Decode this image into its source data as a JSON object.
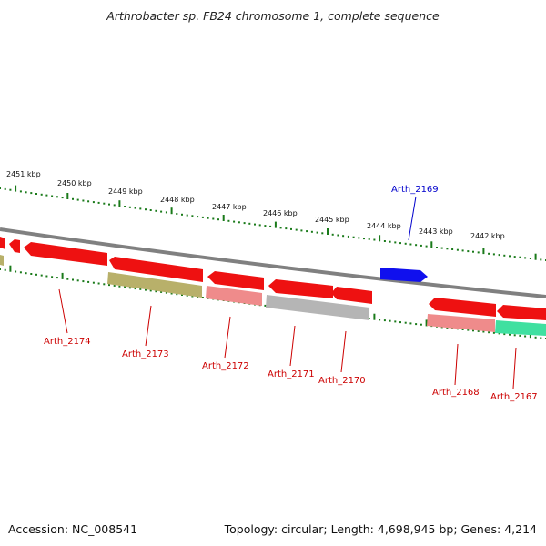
{
  "title": "Arthrobacter sp. FB24 chromosome 1, complete sequence",
  "footer": {
    "accession": "Accession: NC_008541",
    "summary": "Topology: circular; Length: 4,698,945 bp; Genes: 4,214"
  },
  "colors": {
    "backbone": "#808080",
    "tick": "#1a7a1a",
    "gene_red": "#ee1111",
    "gene_pink": "#ef8b8b",
    "gene_olive": "#b8b06a",
    "gene_gray": "#b5b5b5",
    "gene_blue": "#1010ee",
    "gene_teal": "#3fe0a0",
    "label_red": "#cc0000",
    "label_blue": "#0000cc"
  },
  "kbp_labels": [
    "2451 kbp",
    "2450 kbp",
    "2449 kbp",
    "2448 kbp",
    "2447 kbp",
    "2446 kbp",
    "2445 kbp",
    "2444 kbp",
    "2443 kbp",
    "2442 kbp"
  ],
  "gene_labels": [
    "Arth_2174",
    "Arth_2173",
    "Arth_2172",
    "Arth_2171",
    "Arth_2170",
    "Arth_2169",
    "Arth_2168",
    "Arth_2167"
  ]
}
